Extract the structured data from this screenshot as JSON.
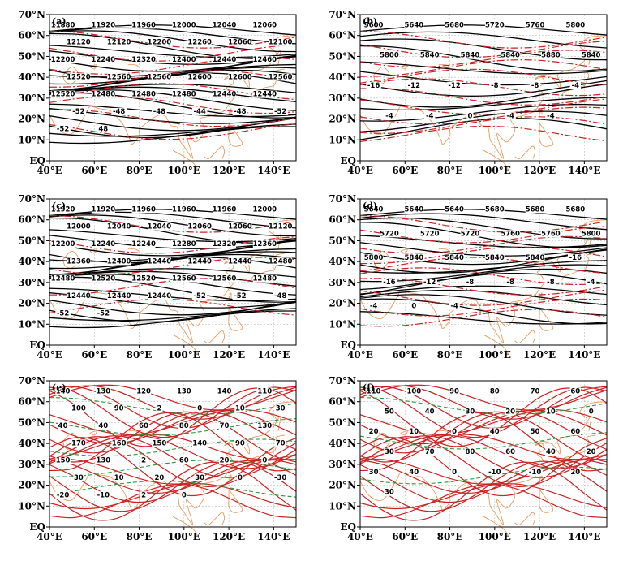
{
  "figure": {
    "x_ticks": [
      "40°E",
      "60°E",
      "80°E",
      "100°E",
      "120°E",
      "140°E"
    ],
    "y_ticks": [
      "EQ",
      "10°N",
      "20°N",
      "30°N",
      "40°N",
      "50°N",
      "60°N",
      "70°N"
    ],
    "panels": [
      {
        "id": "a",
        "letter": "(a)",
        "solid_labels": [
          "11880",
          "11920",
          "11960",
          "12000",
          "12040",
          "12060",
          "12120",
          "12120",
          "12200",
          "12260",
          "12060",
          "12100",
          "12200",
          "12240",
          "12320",
          "12400",
          "12440",
          "12460",
          "12520",
          "12560",
          "12560",
          "12600",
          "12600",
          "12560",
          "12520",
          "12480",
          "12480",
          "12480",
          "12440",
          "12440"
        ],
        "dashed_labels": [
          "-52",
          "-48",
          "-48",
          "-44",
          "-48",
          "-52",
          "-52",
          "48"
        ]
      },
      {
        "id": "b",
        "letter": "(b)",
        "solid_labels": [
          "5600",
          "5640",
          "5680",
          "5720",
          "5760",
          "5800",
          "5800",
          "5840",
          "5840",
          "5840",
          "5880",
          "5840"
        ],
        "dashed_labels": [
          "-16",
          "-12",
          "-12",
          "-8",
          "-8",
          "-4",
          "-4",
          "-4",
          "0",
          "-4",
          "-4"
        ]
      },
      {
        "id": "c",
        "letter": "(c)",
        "solid_labels": [
          "11920",
          "11920",
          "11960",
          "11960",
          "11960",
          "12000",
          "12000",
          "12040",
          "12040",
          "12060",
          "12060",
          "12120",
          "12200",
          "12240",
          "12240",
          "12280",
          "12320",
          "12360",
          "12360",
          "12400",
          "12440",
          "12440",
          "12440",
          "12480",
          "12480",
          "12520",
          "12520",
          "12560",
          "12560",
          "12480",
          "12440",
          "12440",
          "12440"
        ],
        "dashed_labels": [
          "-52",
          "-52",
          "-48",
          "-52",
          "-52"
        ]
      },
      {
        "id": "d",
        "letter": "(d)",
        "solid_labels": [
          "5640",
          "5640",
          "5640",
          "5680",
          "5680",
          "5680",
          "5720",
          "5720",
          "5720",
          "5760",
          "5760",
          "5800",
          "5800",
          "5840",
          "5840",
          "5840",
          "5840"
        ],
        "dashed_labels": [
          "-16",
          "-16",
          "-12",
          "-8",
          "-8",
          "-8",
          "-4",
          "-4",
          "0",
          "-4"
        ]
      },
      {
        "id": "e",
        "letter": "(e)",
        "red_labels": [
          "140",
          "130",
          "120",
          "130",
          "140",
          "110",
          "100",
          "90",
          "2",
          "0",
          "10",
          "30",
          "40",
          "40",
          "60",
          "80",
          "70",
          "130",
          "170",
          "160",
          "150",
          "140",
          "90",
          "70",
          "150",
          "130",
          "2",
          "60",
          "20",
          "0",
          "30",
          "10",
          "20",
          "30",
          "0"
        ],
        "green_labels": [
          "-30",
          "-20",
          "-10",
          "2",
          "0"
        ]
      },
      {
        "id": "f",
        "letter": "(f)",
        "red_labels": [
          "110",
          "100",
          "90",
          "80",
          "70",
          "60",
          "50",
          "40",
          "30",
          "20",
          "10",
          "0",
          "20",
          "10",
          "0",
          "40",
          "50",
          "60",
          "30",
          "70",
          "80",
          "60",
          "40",
          "20",
          "30",
          "40",
          "0",
          "-10",
          "-10",
          "20",
          "30"
        ],
        "green_labels": []
      }
    ]
  }
}
